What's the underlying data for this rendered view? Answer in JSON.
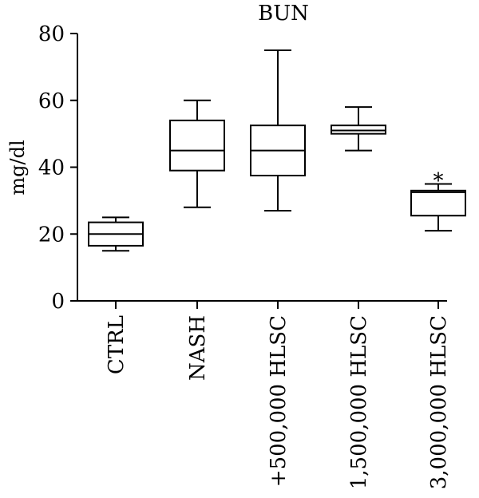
{
  "chart_data": {
    "type": "box",
    "title": "BUN",
    "ylabel": "mg/dl",
    "xlabel": "",
    "ylim": [
      0,
      80
    ],
    "yticks": [
      "0",
      "20",
      "40",
      "60",
      "80"
    ],
    "grid": false,
    "categories": [
      "CTRL",
      "NASH",
      "+500,000 HLSC",
      "+ 1,500,000 HLSC",
      "+ 3,000,000 HLSC"
    ],
    "boxes": [
      {
        "min": 15,
        "q1": 16.5,
        "median": 20,
        "q3": 23.5,
        "max": 25
      },
      {
        "min": 28,
        "q1": 39,
        "median": 45,
        "q3": 54,
        "max": 60
      },
      {
        "min": 27,
        "q1": 37.5,
        "median": 45,
        "q3": 52.5,
        "max": 75
      },
      {
        "min": 45,
        "q1": 50,
        "median": 51,
        "q3": 52.5,
        "max": 58
      },
      {
        "min": 21,
        "q1": 25.5,
        "median": 32.5,
        "q3": 33,
        "max": 35
      }
    ],
    "annotations": [
      {
        "category_index": 4,
        "text": "*",
        "y": 37
      }
    ]
  }
}
